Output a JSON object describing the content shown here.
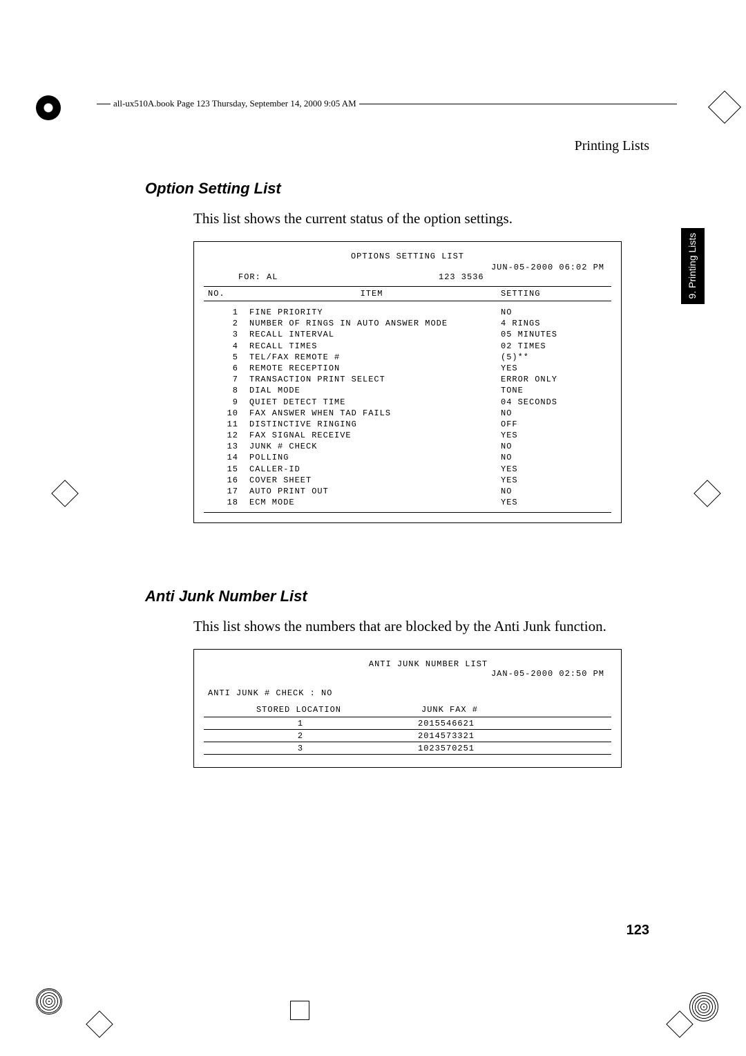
{
  "header_bar_text": "all-ux510A.book  Page 123  Thursday, September 14, 2000  9:05 AM",
  "running_head": "Printing Lists",
  "side_tab": "9. Printing\nLists",
  "section1": {
    "title": "Option Setting List",
    "body": "This list shows the current status of the option settings.",
    "report": {
      "title": "OPTIONS SETTING LIST",
      "date": "JUN-05-2000 06:02 PM",
      "for_label": "FOR: AL",
      "for_value": "123 3536",
      "col_no": "NO.",
      "col_item": "ITEM",
      "col_setting": "SETTING",
      "rows": [
        {
          "no": "1",
          "item": "FINE PRIORITY",
          "setting": "NO"
        },
        {
          "no": "2",
          "item": "NUMBER OF RINGS IN AUTO ANSWER MODE",
          "setting": "4 RINGS"
        },
        {
          "no": "3",
          "item": "RECALL INTERVAL",
          "setting": "05 MINUTES"
        },
        {
          "no": "4",
          "item": "RECALL TIMES",
          "setting": "02 TIMES"
        },
        {
          "no": "5",
          "item": "TEL/FAX REMOTE #",
          "setting": "(5)**"
        },
        {
          "no": "6",
          "item": "REMOTE RECEPTION",
          "setting": "YES"
        },
        {
          "no": "7",
          "item": "TRANSACTION PRINT SELECT",
          "setting": "ERROR ONLY"
        },
        {
          "no": "8",
          "item": "DIAL MODE",
          "setting": "TONE"
        },
        {
          "no": "9",
          "item": "QUIET DETECT TIME",
          "setting": "04 SECONDS"
        },
        {
          "no": "10",
          "item": "FAX ANSWER WHEN TAD FAILS",
          "setting": "NO"
        },
        {
          "no": "11",
          "item": "DISTINCTIVE RINGING",
          "setting": "OFF"
        },
        {
          "no": "12",
          "item": "FAX SIGNAL RECEIVE",
          "setting": "YES"
        },
        {
          "no": "13",
          "item": "JUNK # CHECK",
          "setting": "NO"
        },
        {
          "no": "14",
          "item": "POLLING",
          "setting": "NO"
        },
        {
          "no": "15",
          "item": "CALLER-ID",
          "setting": "YES"
        },
        {
          "no": "16",
          "item": "COVER SHEET",
          "setting": "YES"
        },
        {
          "no": "17",
          "item": "AUTO PRINT OUT",
          "setting": "NO"
        },
        {
          "no": "18",
          "item": "ECM MODE",
          "setting": "YES"
        }
      ]
    }
  },
  "section2": {
    "title": "Anti Junk Number List",
    "body": "This list shows the numbers that are blocked by the Anti Junk function.",
    "report": {
      "title": "ANTI JUNK NUMBER LIST",
      "date": "JAN-05-2000 02:50 PM",
      "check": "ANTI JUNK # CHECK : NO",
      "col_loc": "STORED LOCATION",
      "col_fax": "JUNK FAX #",
      "rows": [
        {
          "loc": "1",
          "fax": "2015546621"
        },
        {
          "loc": "2",
          "fax": "2014573321"
        },
        {
          "loc": "3",
          "fax": "1023570251"
        }
      ]
    }
  },
  "page_number": "123"
}
